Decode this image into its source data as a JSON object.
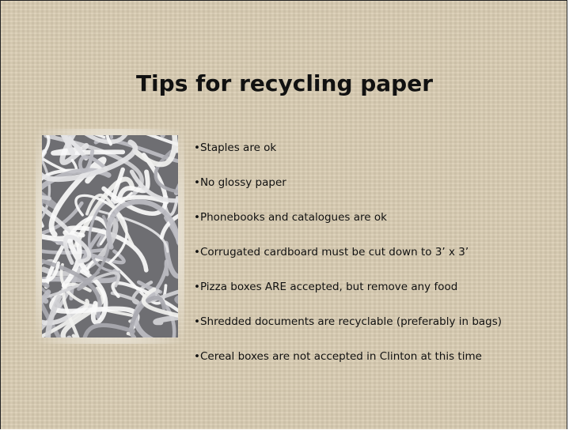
{
  "title": "Tips for recycling paper",
  "bullets": [
    "•Staples are ok",
    "•No glossy paper",
    "•Phonebooks and catalogues are ok",
    "•Corrugated cardboard must be cut down to 3’ x 3’",
    "•Pizza boxes ARE accepted, but remove any food",
    "•Shredded documents are recyclable (preferably in bags)",
    "•Cereal boxes are not accepted in Clinton at this time"
  ]
}
